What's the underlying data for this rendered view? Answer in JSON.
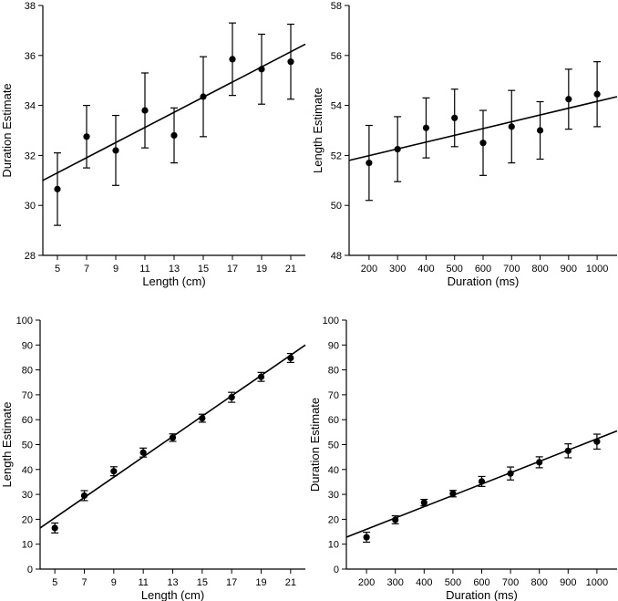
{
  "chart_data": [
    {
      "type": "scatter",
      "xlabel": "Length (cm)",
      "ylabel": "Duration Estimate",
      "xlim": [
        4,
        22
      ],
      "ylim": [
        28,
        38
      ],
      "xticks": [
        5,
        7,
        9,
        11,
        13,
        15,
        17,
        19,
        21
      ],
      "yticks": [
        28,
        30,
        32,
        34,
        36,
        38
      ],
      "points": [
        {
          "x": 5,
          "y": 30.65,
          "err": 1.45
        },
        {
          "x": 7,
          "y": 32.75,
          "err": 1.25
        },
        {
          "x": 9,
          "y": 32.2,
          "err": 1.4
        },
        {
          "x": 11,
          "y": 33.8,
          "err": 1.5
        },
        {
          "x": 13,
          "y": 32.8,
          "err": 1.1
        },
        {
          "x": 15,
          "y": 34.35,
          "err": 1.6
        },
        {
          "x": 17,
          "y": 35.85,
          "err": 1.45
        },
        {
          "x": 19,
          "y": 35.45,
          "err": 1.4
        },
        {
          "x": 21,
          "y": 35.75,
          "err": 1.5
        }
      ],
      "fit": {
        "x1": 4,
        "y1": 31.0,
        "x2": 22,
        "y2": 36.45
      }
    },
    {
      "type": "scatter",
      "xlabel": "Duration (ms)",
      "ylabel": "Length Estimate",
      "xlim": [
        130,
        1070
      ],
      "ylim": [
        48,
        58
      ],
      "xticks": [
        200,
        300,
        400,
        500,
        600,
        700,
        800,
        900,
        1000
      ],
      "yticks": [
        48,
        50,
        52,
        54,
        56,
        58
      ],
      "points": [
        {
          "x": 200,
          "y": 51.7,
          "err": 1.5
        },
        {
          "x": 300,
          "y": 52.25,
          "err": 1.3
        },
        {
          "x": 400,
          "y": 53.1,
          "err": 1.2
        },
        {
          "x": 500,
          "y": 53.5,
          "err": 1.15
        },
        {
          "x": 600,
          "y": 52.5,
          "err": 1.3
        },
        {
          "x": 700,
          "y": 53.15,
          "err": 1.45
        },
        {
          "x": 800,
          "y": 53.0,
          "err": 1.15
        },
        {
          "x": 900,
          "y": 54.25,
          "err": 1.2
        },
        {
          "x": 1000,
          "y": 54.45,
          "err": 1.3
        }
      ],
      "fit": {
        "x1": 130,
        "y1": 51.8,
        "x2": 1070,
        "y2": 54.35
      }
    },
    {
      "type": "scatter",
      "xlabel": "Length (cm)",
      "ylabel": "Length Estimate",
      "xlim": [
        4,
        22
      ],
      "ylim": [
        0,
        100
      ],
      "xticks": [
        5,
        7,
        9,
        11,
        13,
        15,
        17,
        19,
        21
      ],
      "yticks": [
        0,
        10,
        20,
        30,
        40,
        50,
        60,
        70,
        80,
        90,
        100
      ],
      "points": [
        {
          "x": 5,
          "y": 16.5,
          "err": 2.0
        },
        {
          "x": 7,
          "y": 29.5,
          "err": 2.0
        },
        {
          "x": 9,
          "y": 39.3,
          "err": 1.8
        },
        {
          "x": 11,
          "y": 46.8,
          "err": 1.8
        },
        {
          "x": 13,
          "y": 52.8,
          "err": 1.5
        },
        {
          "x": 15,
          "y": 60.6,
          "err": 1.6
        },
        {
          "x": 17,
          "y": 69.0,
          "err": 2.0
        },
        {
          "x": 19,
          "y": 77.2,
          "err": 1.8
        },
        {
          "x": 21,
          "y": 84.8,
          "err": 1.8
        }
      ],
      "fit": {
        "x1": 4,
        "y1": 16.5,
        "x2": 22,
        "y2": 90.0
      }
    },
    {
      "type": "scatter",
      "xlabel": "Duration (ms)",
      "ylabel": "Duration Estimate",
      "xlim": [
        130,
        1070
      ],
      "ylim": [
        0,
        100
      ],
      "xticks": [
        200,
        300,
        400,
        500,
        600,
        700,
        800,
        900,
        1000
      ],
      "yticks": [
        0,
        10,
        20,
        30,
        40,
        50,
        60,
        70,
        80,
        90,
        100
      ],
      "points": [
        {
          "x": 200,
          "y": 12.8,
          "err": 2.0
        },
        {
          "x": 300,
          "y": 19.8,
          "err": 1.6
        },
        {
          "x": 400,
          "y": 26.7,
          "err": 1.3
        },
        {
          "x": 500,
          "y": 30.3,
          "err": 1.3
        },
        {
          "x": 600,
          "y": 35.2,
          "err": 2.0
        },
        {
          "x": 700,
          "y": 38.4,
          "err": 2.6
        },
        {
          "x": 800,
          "y": 42.9,
          "err": 2.2
        },
        {
          "x": 900,
          "y": 47.5,
          "err": 2.8
        },
        {
          "x": 1000,
          "y": 51.2,
          "err": 3.0
        }
      ],
      "fit": {
        "x1": 130,
        "y1": 12.8,
        "x2": 1070,
        "y2": 55.5
      }
    }
  ]
}
